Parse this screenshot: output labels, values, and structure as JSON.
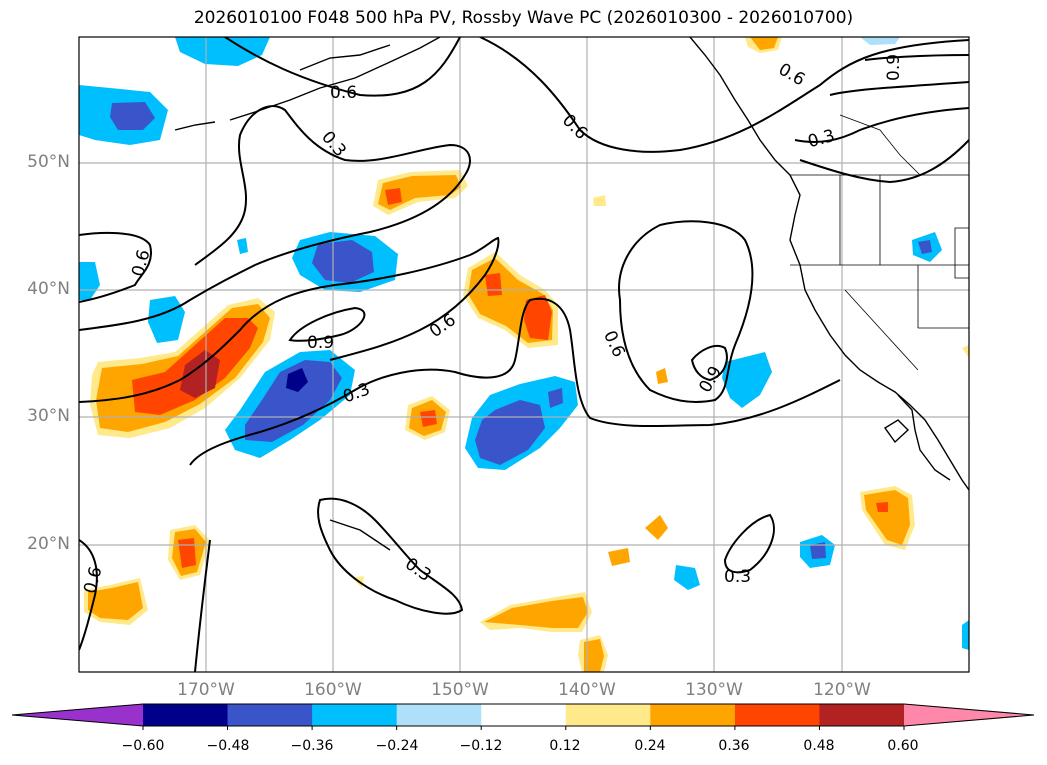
{
  "title": "2026010100 F048 500 hPa PV, Rossby Wave PC (2026010300 - 2026010700)",
  "latitude_labels": [
    "50°N",
    "40°N",
    "30°N",
    "20°N"
  ],
  "longitude_labels": [
    "170°W",
    "160°W",
    "150°W",
    "140°W",
    "130°W",
    "120°W"
  ],
  "colorbar": {
    "ticks": [
      "−0.60",
      "−0.48",
      "−0.36",
      "−0.24",
      "−0.12",
      "0.12",
      "0.24",
      "0.36",
      "0.48",
      "0.60"
    ],
    "colors": [
      "#9932cc",
      "#00008b",
      "#3a55c9",
      "#00bfff",
      "#aee0fa",
      "#ffffff",
      "#ffe98a",
      "#ffa500",
      "#ff4500",
      "#b22222",
      "#ff88aa"
    ]
  },
  "contour_labels": [
    "0.6",
    "0.3",
    "0.6",
    "0.6",
    "0.9",
    "0.6",
    "0.3",
    "0.6",
    "0.9",
    "0.3",
    "0.3",
    "0.6",
    "0.3",
    "0.9",
    "0.6"
  ]
}
